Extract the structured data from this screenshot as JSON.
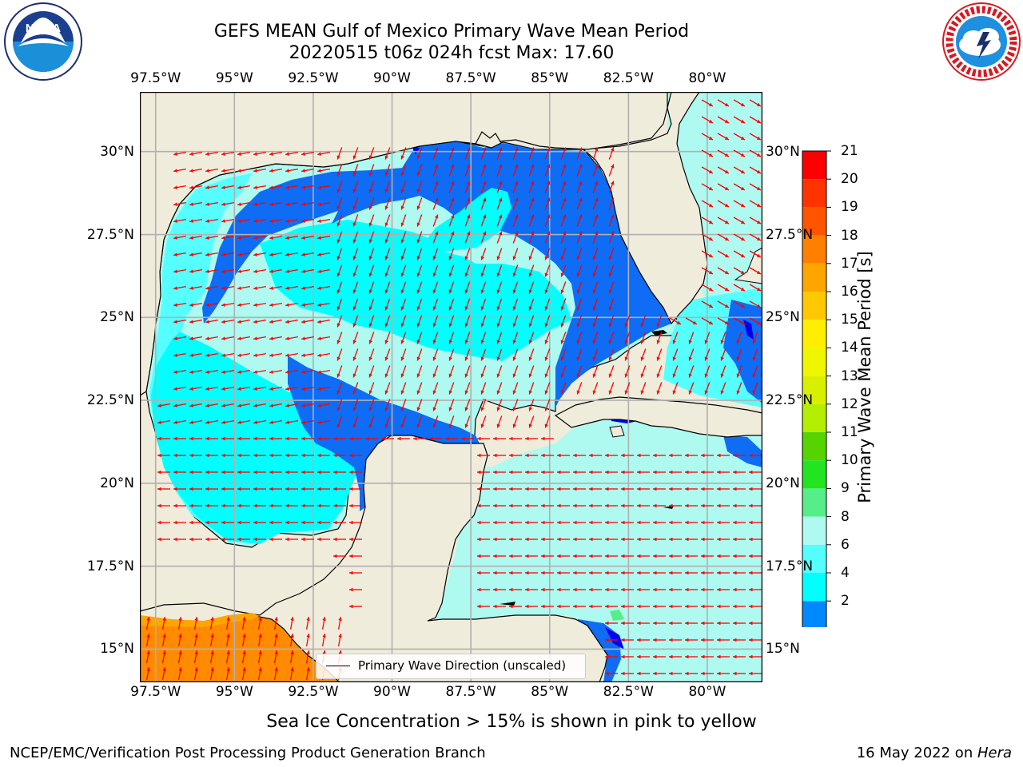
{
  "title": {
    "line1": "GEFS MEAN Gulf of Mexico Primary Wave Mean Period",
    "line2": "20220515 t06z 024h fcst   Max: 17.60"
  },
  "logos": {
    "noaa": {
      "text": "NOAA",
      "ring": "NATIONAL OCEANIC AND ATMOSPHERIC ADMINISTRATION · U.S. DEPARTMENT OF COMMERCE"
    },
    "nws": {
      "ring": "NATIONAL WEATHER SERVICE"
    }
  },
  "map": {
    "lon_ticks": [
      "97.5°W",
      "95°W",
      "92.5°W",
      "90°W",
      "87.5°W",
      "85°W",
      "82.5°W",
      "80°W"
    ],
    "lat_ticks": [
      "30°N",
      "27.5°N",
      "25°N",
      "22.5°N",
      "20°N",
      "17.5°N",
      "15°N"
    ],
    "lon_range": [
      -98,
      -78.25
    ],
    "lat_range": [
      14,
      31.8
    ],
    "grid": true,
    "vector_color": "#ff0000",
    "land_color": "#efecdb",
    "swell_color": "#ff8c00"
  },
  "colorbar": {
    "label": "Primary Wave Mean Period [s]",
    "levels": [
      "21",
      "20",
      "19",
      "18",
      "17",
      "16",
      "15",
      "14",
      "13",
      "12",
      "11",
      "10",
      "9",
      "8",
      "6",
      "4",
      "2"
    ],
    "colors": [
      "#ff0000",
      "#ff3300",
      "#ff5500",
      "#ff7f00",
      "#ffa500",
      "#ffc800",
      "#ffee00",
      "#f0f500",
      "#d8f000",
      "#b4ee00",
      "#55d400",
      "#22e522",
      "#55ee88",
      "#aefaf0",
      "#55ffff",
      "#00ffff",
      "#0088ff"
    ],
    "under_color": "#0000ff"
  },
  "legend": {
    "label": "Primary Wave Direction (unscaled)"
  },
  "note": "Sea Ice Concentration > 15% is shown in pink to yellow",
  "footer": {
    "left": "NCEP/EMC/Verification Post Processing Product Generation Branch",
    "date": "16 May 2022 on ",
    "machine": "Hera"
  }
}
